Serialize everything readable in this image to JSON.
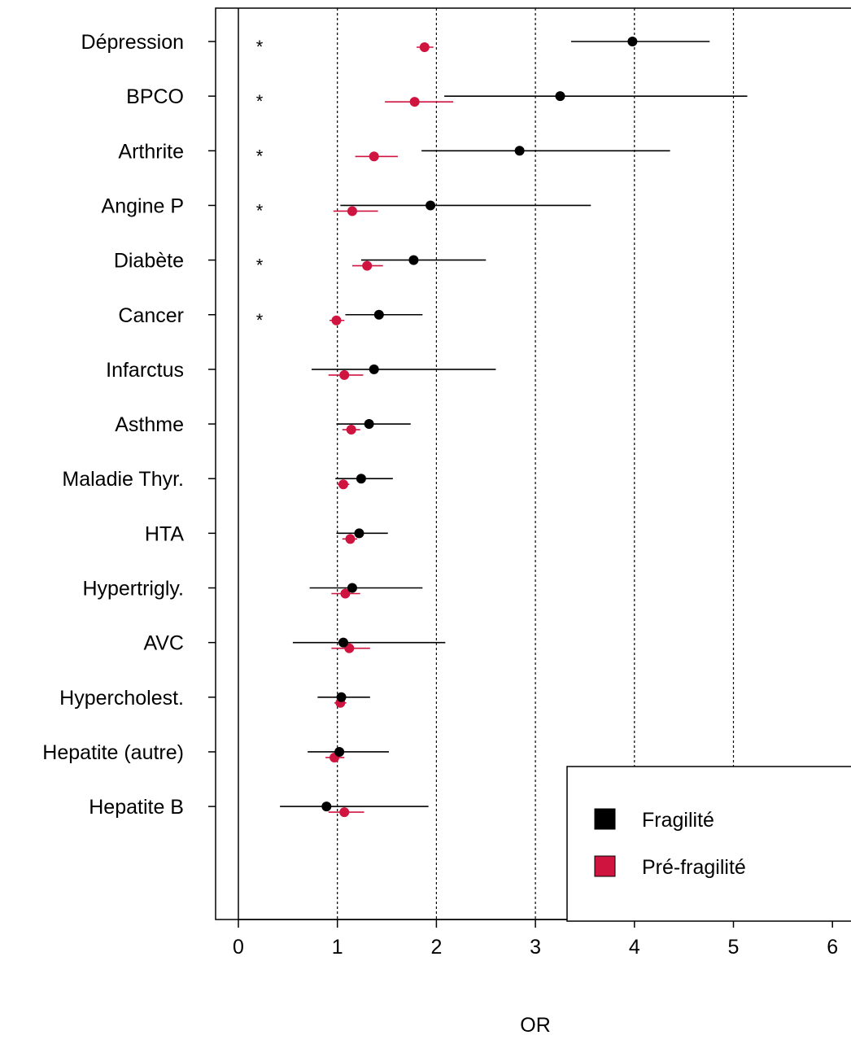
{
  "chart_data": {
    "type": "forest",
    "xlabel": "OR",
    "xlim": [
      0,
      6
    ],
    "xticks": [
      0,
      1,
      2,
      3,
      4,
      5,
      6
    ],
    "xtick_labels": [
      "0",
      "1",
      "2",
      "3",
      "4",
      "5",
      "6"
    ],
    "reference_line": 0,
    "dotted_gridlines": [
      1,
      2,
      3,
      4,
      5
    ],
    "legend_position": "bottom-right",
    "categories": [
      "Dépression",
      "BPCO",
      "Arthrite",
      "Angine P",
      "Diabète",
      "Cancer",
      "Infarctus",
      "Asthme",
      "Maladie Thyr.",
      "HTA",
      "Hypertrigly.",
      "AVC",
      "Hypercholest.",
      "Hepatite (autre)",
      "Hepatite B"
    ],
    "significance_marker": "*",
    "significant": [
      true,
      true,
      true,
      true,
      true,
      true,
      false,
      false,
      false,
      false,
      false,
      false,
      false,
      false,
      false
    ],
    "series": [
      {
        "name": "Fragilité",
        "color": "#000000",
        "estimate": [
          3.98,
          3.25,
          2.84,
          1.94,
          1.77,
          1.42,
          1.37,
          1.32,
          1.24,
          1.22,
          1.15,
          1.06,
          1.04,
          1.02,
          0.89
        ],
        "lower": [
          3.36,
          2.08,
          1.85,
          1.03,
          1.24,
          1.08,
          0.74,
          0.99,
          0.98,
          0.99,
          0.72,
          0.55,
          0.8,
          0.7,
          0.42
        ],
        "upper": [
          4.76,
          5.14,
          4.36,
          3.56,
          2.5,
          1.86,
          2.6,
          1.74,
          1.56,
          1.51,
          1.86,
          2.09,
          1.33,
          1.52,
          1.92
        ]
      },
      {
        "name": "Pré-fragilité",
        "color": "#D01440",
        "estimate": [
          1.88,
          1.78,
          1.37,
          1.15,
          1.3,
          0.99,
          1.07,
          1.14,
          1.06,
          1.13,
          1.08,
          1.12,
          1.03,
          0.97,
          1.07
        ],
        "lower": [
          1.8,
          1.48,
          1.18,
          0.96,
          1.15,
          0.92,
          0.91,
          1.05,
          1.0,
          1.05,
          0.94,
          0.94,
          0.97,
          0.88,
          0.91
        ],
        "upper": [
          1.97,
          2.17,
          1.61,
          1.41,
          1.46,
          1.07,
          1.26,
          1.23,
          1.12,
          1.2,
          1.23,
          1.33,
          1.09,
          1.07,
          1.27
        ]
      }
    ]
  }
}
